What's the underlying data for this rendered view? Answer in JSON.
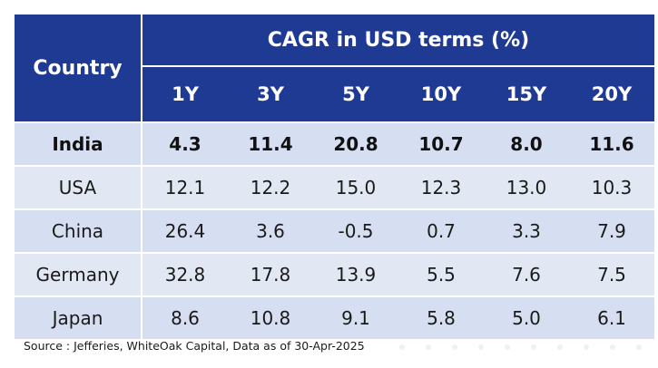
{
  "chart_data": {
    "type": "table",
    "title": "CAGR in USD terms (%)",
    "row_header": "Country",
    "columns": [
      "1Y",
      "3Y",
      "5Y",
      "10Y",
      "15Y",
      "20Y"
    ],
    "rows": [
      {
        "country": "India",
        "bold": true,
        "values": [
          "4.3",
          "11.4",
          "20.8",
          "10.7",
          "8.0",
          "11.6"
        ]
      },
      {
        "country": "USA",
        "bold": false,
        "values": [
          "12.1",
          "12.2",
          "15.0",
          "12.3",
          "13.0",
          "10.3"
        ]
      },
      {
        "country": "China",
        "bold": false,
        "values": [
          "26.4",
          "3.6",
          "-0.5",
          "0.7",
          "3.3",
          "7.9"
        ]
      },
      {
        "country": "Germany",
        "bold": false,
        "values": [
          "32.8",
          "17.8",
          "13.9",
          "5.5",
          "7.6",
          "7.5"
        ]
      },
      {
        "country": "Japan",
        "bold": false,
        "values": [
          "8.6",
          "10.8",
          "9.1",
          "5.8",
          "5.0",
          "6.1"
        ]
      }
    ]
  },
  "source": "Source : Jefferies, WhiteOak Capital, Data as of 30-Apr-2025",
  "colors": {
    "header_bg": "#1f3a93",
    "header_text": "#ffffff",
    "row_bg_a": "#d6def1",
    "row_bg_b": "#e2e7f4"
  }
}
